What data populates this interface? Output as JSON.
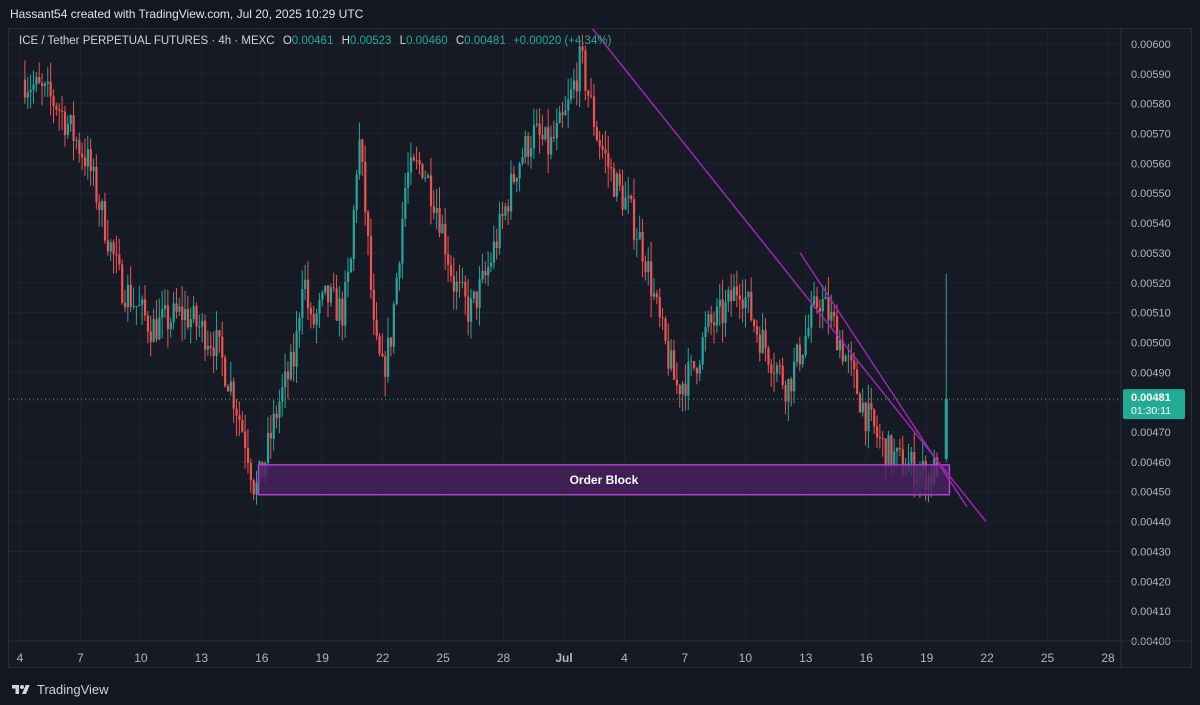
{
  "header": {
    "attribution": "Hassant54 created with TradingView.com, Jul 20, 2025 10:29 UTC"
  },
  "legend": {
    "symbol": "ICE / Tether PERPETUAL FUTURES · 4h · MEXC",
    "open_label": "O",
    "open": "0.00461",
    "high_label": "H",
    "high": "0.00523",
    "low_label": "L",
    "low": "0.00460",
    "close_label": "C",
    "close": "0.00481",
    "change": "+0.00020 (+4.34%)"
  },
  "price_label": {
    "price": "0.00481",
    "countdown": "01:30:11"
  },
  "annotation": {
    "order_block": "Order Block"
  },
  "footer": {
    "brand": "TradingView"
  },
  "colors": {
    "up": "#26a69a",
    "down": "#ef5350",
    "trendline": "#9c27b0",
    "order_block_fill": "#4a2060",
    "background": "#161a25"
  },
  "chart_data": {
    "type": "candlestick",
    "interval": "4h",
    "ylim": [
      0.004,
      0.00605
    ],
    "y_ticks": [
      "0.00400",
      "0.00410",
      "0.00420",
      "0.00430",
      "0.00440",
      "0.00450",
      "0.00460",
      "0.00470",
      "0.00480",
      "0.00490",
      "0.00500",
      "0.00510",
      "0.00520",
      "0.00530",
      "0.00540",
      "0.00550",
      "0.00560",
      "0.00570",
      "0.00580",
      "0.00590",
      "0.00600"
    ],
    "x_ticks": [
      "4",
      "7",
      "10",
      "13",
      "16",
      "19",
      "22",
      "25",
      "28",
      "Jul",
      "4",
      "7",
      "10",
      "13",
      "16",
      "19",
      "22",
      "25",
      "28"
    ],
    "price_path": [
      [
        0,
        0.00588
      ],
      [
        2,
        0.0058
      ],
      [
        4,
        0.0056
      ],
      [
        6,
        0.0052
      ],
      [
        8,
        0.00505
      ],
      [
        10,
        0.0051
      ],
      [
        12,
        0.005
      ],
      [
        13,
        0.00485
      ],
      [
        14,
        0.00465
      ],
      [
        14.5,
        0.0045
      ],
      [
        15,
        0.00458
      ],
      [
        16,
        0.0048
      ],
      [
        17,
        0.00495
      ],
      [
        17.5,
        0.00525
      ],
      [
        18,
        0.00505
      ],
      [
        19,
        0.00515
      ],
      [
        20,
        0.0051
      ],
      [
        20.5,
        0.00525
      ],
      [
        21,
        0.0057
      ],
      [
        21.5,
        0.0054
      ],
      [
        22,
        0.005
      ],
      [
        22.5,
        0.0049
      ],
      [
        23,
        0.005
      ],
      [
        24,
        0.00555
      ],
      [
        25,
        0.0056
      ],
      [
        26,
        0.00545
      ],
      [
        27,
        0.0052
      ],
      [
        28,
        0.0051
      ],
      [
        29,
        0.00522
      ],
      [
        30,
        0.0054
      ],
      [
        31,
        0.0056
      ],
      [
        32,
        0.0057
      ],
      [
        33,
        0.00565
      ],
      [
        34,
        0.00575
      ],
      [
        35,
        0.00595
      ],
      [
        36,
        0.0057
      ],
      [
        37,
        0.00555
      ],
      [
        38,
        0.00545
      ],
      [
        39,
        0.0053
      ],
      [
        40,
        0.00505
      ],
      [
        41,
        0.00485
      ],
      [
        42,
        0.0049
      ],
      [
        43,
        0.00505
      ],
      [
        44,
        0.0051
      ],
      [
        45,
        0.0052
      ],
      [
        46,
        0.00505
      ],
      [
        47,
        0.00495
      ],
      [
        48,
        0.00485
      ],
      [
        49,
        0.005
      ],
      [
        50,
        0.00515
      ],
      [
        51,
        0.00505
      ],
      [
        52,
        0.0049
      ],
      [
        53,
        0.00475
      ],
      [
        54,
        0.00465
      ],
      [
        55,
        0.0046
      ],
      [
        56,
        0.00458
      ],
      [
        57,
        0.00455
      ],
      [
        57.5,
        0.0046
      ],
      [
        58,
        0.00481
      ]
    ],
    "trendlines": [
      {
        "from": [
          35.3,
          0.00608
        ],
        "to": [
          60.5,
          0.0044
        ]
      },
      {
        "from": [
          48.8,
          0.0053
        ],
        "to": [
          59.3,
          0.00445
        ]
      }
    ],
    "order_block": {
      "from_x": 14.7,
      "to_x": 58.2,
      "low": 0.00449,
      "high": 0.00459,
      "label": "Order Block"
    },
    "last_price": 0.00481,
    "x_range": [
      -1,
      69
    ]
  }
}
